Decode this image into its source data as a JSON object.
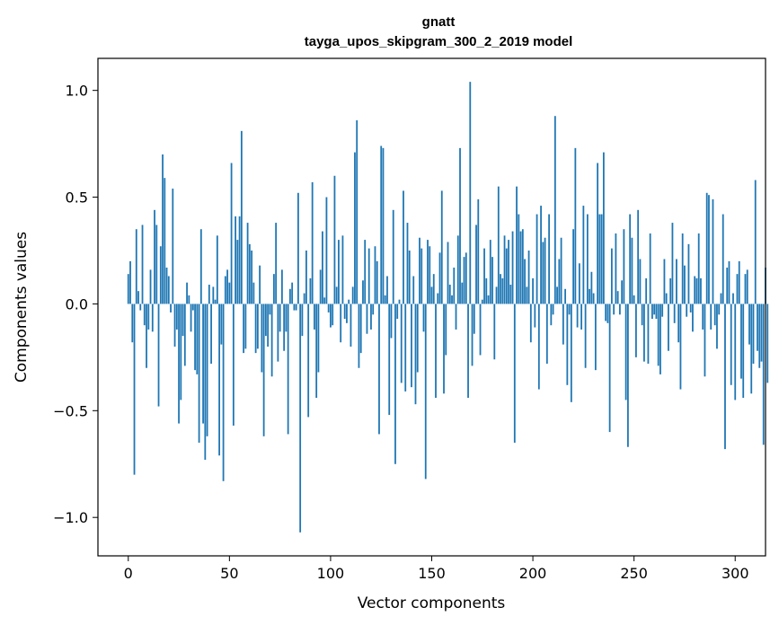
{
  "chart_data": {
    "type": "bar",
    "title": "gnatt",
    "subtitle": "tayga_upos_skipgram_300_2_2019 model",
    "xlabel": "Vector components",
    "ylabel": "Components values",
    "xlim": [
      -15.0,
      315.0
    ],
    "ylim": [
      -1.18,
      1.15
    ],
    "xticks": [
      0,
      50,
      100,
      150,
      200,
      250,
      300
    ],
    "xtick_labels": [
      "0",
      "50",
      "100",
      "150",
      "200",
      "250",
      "300"
    ],
    "yticks": [
      1.0,
      0.5,
      0.0,
      -0.5,
      -1.0
    ],
    "ytick_labels": [
      "1.0",
      "0.5",
      "0.0",
      "−0.5",
      "−1.0"
    ],
    "grid": false,
    "color": "#1f77b4",
    "values": [
      0.14,
      0.2,
      -0.18,
      -0.8,
      0.35,
      0.06,
      -0.03,
      0.37,
      -0.1,
      -0.3,
      -0.12,
      0.16,
      -0.13,
      0.44,
      0.37,
      -0.48,
      0.27,
      0.7,
      0.59,
      0.17,
      0.13,
      -0.04,
      0.54,
      -0.2,
      -0.12,
      -0.56,
      -0.45,
      -0.15,
      -0.29,
      0.1,
      0.04,
      -0.13,
      -0.03,
      -0.31,
      -0.33,
      -0.65,
      0.35,
      -0.56,
      -0.73,
      -0.62,
      0.09,
      -0.28,
      0.08,
      0.02,
      0.32,
      -0.71,
      -0.19,
      -0.83,
      0.13,
      0.16,
      0.1,
      0.66,
      -0.57,
      0.41,
      0.3,
      0.41,
      0.81,
      -0.23,
      -0.21,
      0.38,
      0.28,
      0.25,
      0.1,
      -0.23,
      -0.21,
      0.18,
      -0.32,
      -0.62,
      -0.15,
      -0.2,
      -0.05,
      -0.34,
      0.14,
      0.38,
      -0.27,
      -0.13,
      0.16,
      -0.22,
      -0.13,
      -0.61,
      0.07,
      0.1,
      -0.03,
      -0.03,
      0.52,
      -1.07,
      -0.15,
      0.05,
      0.25,
      -0.53,
      0.12,
      0.57,
      -0.12,
      -0.44,
      -0.32,
      0.16,
      0.34,
      0.03,
      0.5,
      -0.04,
      -0.11,
      -0.1,
      0.6,
      0.08,
      0.3,
      -0.18,
      0.32,
      -0.07,
      -0.09,
      0.02,
      -0.2,
      0.08,
      0.71,
      0.86,
      -0.3,
      -0.23,
      0.11,
      0.3,
      -0.14,
      0.26,
      -0.12,
      -0.05,
      0.27,
      0.2,
      -0.61,
      0.74,
      0.73,
      0.04,
      0.13,
      -0.52,
      -0.16,
      0.44,
      -0.75,
      -0.07,
      0.02,
      -0.37,
      0.53,
      -0.41,
      0.38,
      0.25,
      -0.39,
      0.13,
      -0.47,
      -0.32,
      0.31,
      0.26,
      -0.13,
      -0.82,
      0.3,
      0.27,
      0.08,
      0.14,
      -0.44,
      0.05,
      0.24,
      0.53,
      -0.42,
      -0.24,
      0.29,
      0.09,
      0.04,
      0.17,
      -0.12,
      0.32,
      0.73,
      0.1,
      0.22,
      0.24,
      -0.44,
      1.04,
      -0.29,
      -0.14,
      0.37,
      0.49,
      -0.24,
      0.02,
      0.26,
      0.12,
      0.04,
      0.3,
      0.22,
      -0.26,
      0.08,
      0.55,
      0.14,
      0.12,
      0.32,
      0.26,
      0.3,
      0.09,
      0.34,
      -0.65,
      0.55,
      0.42,
      0.34,
      0.35,
      0.21,
      0.08,
      0.25,
      -0.18,
      0.12,
      -0.11,
      0.42,
      -0.4,
      0.46,
      0.29,
      0.31,
      -0.28,
      0.42,
      -0.1,
      -0.05,
      0.88,
      0.08,
      0.21,
      0.31,
      -0.19,
      0.07,
      -0.38,
      -0.05,
      -0.46,
      0.35,
      0.73,
      -0.11,
      0.19,
      -0.12,
      0.46,
      -0.3,
      0.42,
      0.07,
      0.15,
      0.05,
      -0.31,
      0.66,
      0.42,
      0.42,
      0.71,
      -0.08,
      -0.09,
      -0.6,
      0.26,
      -0.05,
      0.33,
      0.06,
      -0.05,
      0.11,
      0.35,
      -0.45,
      -0.67,
      0.42,
      0.31,
      0.04,
      -0.25,
      0.44,
      0.21,
      -0.1,
      -0.27,
      0.12,
      -0.28,
      0.33,
      -0.07,
      -0.05,
      -0.07,
      -0.29,
      -0.33,
      -0.06,
      0.21,
      0.05,
      -0.22,
      0.12,
      0.38,
      -0.09,
      0.21,
      -0.18,
      -0.4,
      0.33,
      0.18,
      -0.06,
      0.28,
      -0.04,
      -0.13,
      0.13,
      0.12,
      0.33,
      0.12,
      -0.12,
      -0.34,
      0.52,
      0.51,
      -0.12,
      0.49,
      -0.1,
      -0.21,
      -0.05,
      0.05,
      0.42,
      -0.68,
      0.17,
      0.2,
      -0.38,
      0.05,
      -0.45,
      0.14,
      0.2,
      -0.35,
      -0.44,
      0.14,
      0.16,
      -0.19,
      -0.42,
      -0.28,
      0.58,
      -0.22,
      -0.3,
      -0.27,
      -0.66,
      0.17,
      -0.37
    ]
  }
}
